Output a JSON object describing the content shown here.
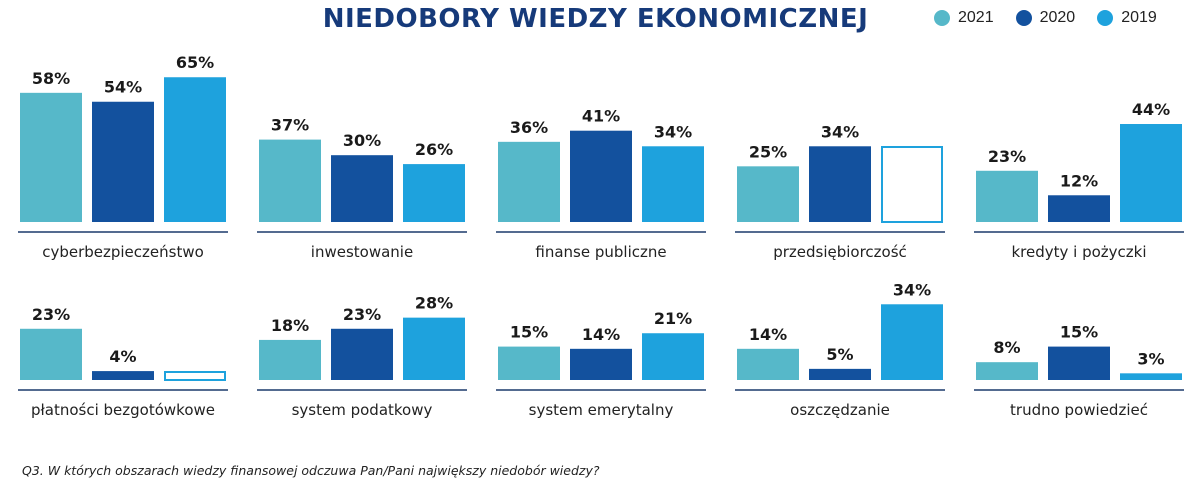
{
  "chart_data": {
    "type": "bar",
    "title": "NIEDOBORY WIEDZY EKONOMICZNEJ",
    "footnote": "Q3. W których obszarach wiedzy finansowej odczuwa Pan/Pani największy niedobór wiedzy?",
    "value_suffix": "%",
    "ylim": [
      0,
      65
    ],
    "series": [
      {
        "name": "2021",
        "color": "#56b8c9"
      },
      {
        "name": "2020",
        "color": "#13519e"
      },
      {
        "name": "2019",
        "color": "#1ea2dd"
      }
    ],
    "categories": [
      {
        "label": "cyberbezpieczeństwo",
        "values": [
          58,
          54,
          65
        ]
      },
      {
        "label": "inwestowanie",
        "values": [
          37,
          30,
          26
        ]
      },
      {
        "label": "finanse publiczne",
        "values": [
          36,
          41,
          34
        ]
      },
      {
        "label": "przedsiębiorczość",
        "values": [
          25,
          34,
          null
        ]
      },
      {
        "label": "kredyty i pożyczki",
        "values": [
          23,
          12,
          44
        ]
      },
      {
        "label": "płatności bezgotówkowe",
        "values": [
          23,
          4,
          null
        ]
      },
      {
        "label": "system podatkowy",
        "values": [
          18,
          23,
          28
        ]
      },
      {
        "label": "system emerytalny",
        "values": [
          15,
          14,
          21
        ]
      },
      {
        "label": "oszczędzanie",
        "values": [
          14,
          5,
          34
        ]
      },
      {
        "label": "trudno powiedzieć",
        "values": [
          8,
          15,
          3
        ]
      }
    ]
  }
}
